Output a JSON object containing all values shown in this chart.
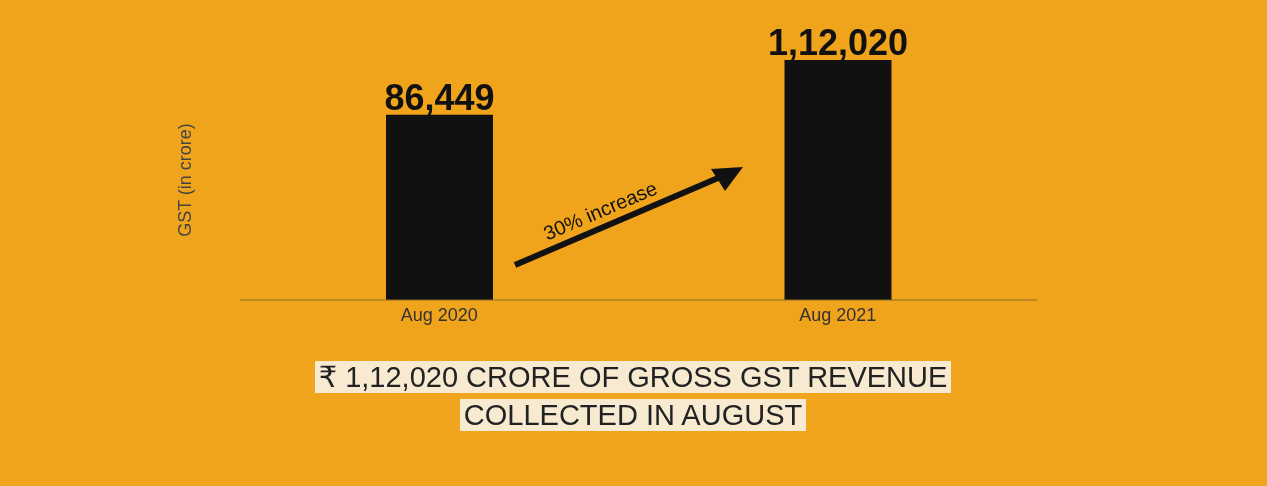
{
  "chart_data": {
    "type": "bar",
    "ylabel": "GST (in crore)",
    "categories": [
      "Aug 2020",
      "Aug 2021"
    ],
    "values": [
      86449,
      112020
    ],
    "value_labels": [
      "86,449",
      "1,12,020"
    ],
    "color": "#111111",
    "annotations": [
      "30% increase",
      "₹ 1,12,020 CRORE OF GROSS GST REVENUE COLLECTED IN AUGUST"
    ]
  }
}
